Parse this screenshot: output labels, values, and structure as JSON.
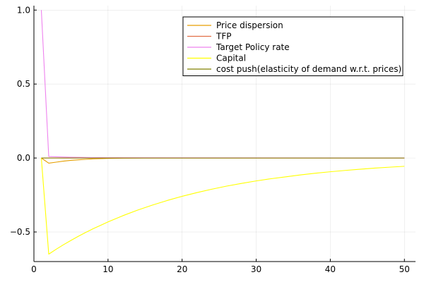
{
  "chart_data": {
    "type": "line",
    "title": "",
    "xlabel": "",
    "ylabel": "",
    "xlim": [
      0,
      51.5
    ],
    "ylim": [
      -0.7,
      1.03
    ],
    "xticks": [
      0,
      10,
      20,
      30,
      40,
      50
    ],
    "xtick_labels": [
      "0",
      "10",
      "20",
      "30",
      "40",
      "50"
    ],
    "yticks": [
      -0.5,
      0.0,
      0.5,
      1.0
    ],
    "ytick_labels": [
      "−0.5",
      "0.0",
      "0.5",
      "1.0"
    ],
    "grid": true,
    "legend_position": "top-right",
    "series": [
      {
        "name": "Price dispersion",
        "color": "#e69f00",
        "x": [
          1,
          2,
          3,
          4,
          5,
          6,
          7,
          8,
          10,
          12,
          15,
          20,
          30,
          50
        ],
        "y": [
          0,
          -0.035,
          -0.028,
          -0.021,
          -0.016,
          -0.012,
          -0.009,
          -0.006,
          -0.003,
          -0.001,
          0,
          0,
          0,
          0
        ]
      },
      {
        "name": "TFP",
        "color": "#e26f46",
        "x": [
          1,
          50
        ],
        "y": [
          0,
          0
        ]
      },
      {
        "name": "Target Policy rate",
        "color": "#ee82ee",
        "x": [
          1,
          2,
          3,
          5,
          10,
          50
        ],
        "y": [
          1.0,
          0.01,
          0.008,
          0.005,
          0.002,
          0.0
        ]
      },
      {
        "name": "Capital",
        "color": "#ffff00",
        "x": [
          1,
          2,
          3,
          4,
          5,
          6,
          7,
          8,
          9,
          10,
          12,
          14,
          16,
          18,
          20,
          22,
          24,
          26,
          28,
          30,
          32,
          34,
          36,
          38,
          40,
          42,
          44,
          46,
          48,
          50
        ],
        "y": [
          0,
          -0.65,
          -0.617,
          -0.586,
          -0.557,
          -0.529,
          -0.503,
          -0.478,
          -0.455,
          -0.432,
          -0.39,
          -0.352,
          -0.318,
          -0.287,
          -0.259,
          -0.234,
          -0.211,
          -0.19,
          -0.172,
          -0.155,
          -0.14,
          -0.127,
          -0.114,
          -0.103,
          -0.093,
          -0.084,
          -0.076,
          -0.068,
          -0.062,
          -0.056
        ]
      },
      {
        "name": "cost push(elasticity of demand w.r.t. prices)",
        "color": "#808000",
        "x": [
          1,
          50
        ],
        "y": [
          0,
          0
        ]
      }
    ]
  }
}
